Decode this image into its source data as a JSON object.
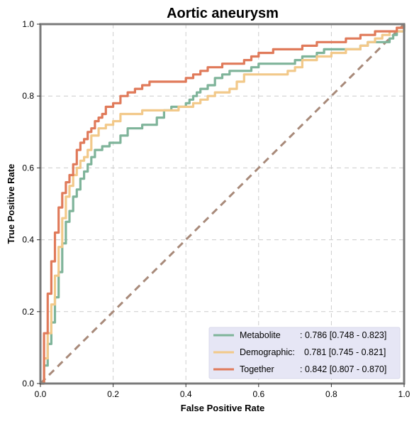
{
  "chart_data": {
    "type": "line",
    "title": "Aortic aneurysm",
    "xlabel": "False Positive Rate",
    "ylabel": "True Positive Rate",
    "xlim": [
      0,
      1
    ],
    "ylim": [
      0,
      1
    ],
    "xticks": [
      "0.0",
      "0.2",
      "0.4",
      "0.6",
      "0.8",
      "1.0"
    ],
    "yticks": [
      "0.0",
      "0.2",
      "0.4",
      "0.6",
      "0.8",
      "1.0"
    ],
    "grid": true,
    "legend_position": "bottom-right",
    "diagonal": {
      "x": [
        0,
        1
      ],
      "y": [
        0,
        1
      ],
      "color": "#a88a7a",
      "style": "dashed"
    },
    "series": [
      {
        "name": "Metabolite",
        "legend_label": "Metabolite      : 0.786 [0.748 - 0.823]",
        "color": "#7fb49a",
        "x": [
          0,
          0.01,
          0.02,
          0.03,
          0.04,
          0.05,
          0.06,
          0.07,
          0.08,
          0.09,
          0.1,
          0.11,
          0.12,
          0.13,
          0.14,
          0.15,
          0.17,
          0.19,
          0.2,
          0.22,
          0.24,
          0.26,
          0.28,
          0.3,
          0.32,
          0.34,
          0.36,
          0.38,
          0.4,
          0.41,
          0.42,
          0.43,
          0.44,
          0.46,
          0.48,
          0.5,
          0.52,
          0.54,
          0.56,
          0.58,
          0.6,
          0.62,
          0.64,
          0.66,
          0.68,
          0.7,
          0.72,
          0.74,
          0.76,
          0.78,
          0.8,
          0.84,
          0.88,
          0.9,
          0.92,
          0.94,
          0.96,
          0.97,
          0.98,
          1.0
        ],
        "y": [
          0,
          0.05,
          0.11,
          0.17,
          0.24,
          0.31,
          0.39,
          0.45,
          0.48,
          0.52,
          0.54,
          0.57,
          0.59,
          0.61,
          0.63,
          0.65,
          0.66,
          0.67,
          0.67,
          0.69,
          0.71,
          0.71,
          0.72,
          0.72,
          0.74,
          0.76,
          0.77,
          0.77,
          0.78,
          0.79,
          0.8,
          0.81,
          0.82,
          0.83,
          0.85,
          0.86,
          0.87,
          0.87,
          0.87,
          0.88,
          0.89,
          0.89,
          0.89,
          0.89,
          0.89,
          0.9,
          0.91,
          0.91,
          0.92,
          0.93,
          0.93,
          0.93,
          0.94,
          0.95,
          0.95,
          0.95,
          0.96,
          0.97,
          0.98,
          1.0
        ]
      },
      {
        "name": "Demographic",
        "legend_label": "Demographic: 0.781 [0.745 - 0.821]",
        "color": "#f2c98a",
        "x": [
          0,
          0.01,
          0.02,
          0.03,
          0.04,
          0.05,
          0.06,
          0.07,
          0.08,
          0.09,
          0.1,
          0.11,
          0.12,
          0.13,
          0.14,
          0.16,
          0.18,
          0.2,
          0.22,
          0.24,
          0.26,
          0.28,
          0.3,
          0.32,
          0.34,
          0.36,
          0.38,
          0.4,
          0.42,
          0.44,
          0.46,
          0.48,
          0.5,
          0.52,
          0.54,
          0.56,
          0.58,
          0.6,
          0.62,
          0.64,
          0.66,
          0.68,
          0.7,
          0.72,
          0.76,
          0.8,
          0.84,
          0.86,
          0.88,
          0.9,
          0.92,
          0.94,
          0.96,
          0.98,
          1.0
        ],
        "y": [
          0,
          0.07,
          0.14,
          0.22,
          0.3,
          0.38,
          0.46,
          0.52,
          0.55,
          0.58,
          0.6,
          0.62,
          0.63,
          0.65,
          0.69,
          0.71,
          0.72,
          0.73,
          0.75,
          0.75,
          0.75,
          0.76,
          0.76,
          0.76,
          0.76,
          0.76,
          0.77,
          0.77,
          0.78,
          0.79,
          0.8,
          0.81,
          0.81,
          0.82,
          0.84,
          0.86,
          0.86,
          0.86,
          0.86,
          0.86,
          0.86,
          0.87,
          0.88,
          0.9,
          0.91,
          0.92,
          0.93,
          0.93,
          0.94,
          0.95,
          0.96,
          0.97,
          0.98,
          0.98,
          1.0
        ]
      },
      {
        "name": "Together",
        "legend_label": "Together       : 0.842 [0.807 - 0.870]",
        "color": "#e07a5a",
        "x": [
          0,
          0.01,
          0.02,
          0.03,
          0.04,
          0.05,
          0.06,
          0.07,
          0.08,
          0.09,
          0.1,
          0.11,
          0.12,
          0.13,
          0.14,
          0.15,
          0.16,
          0.17,
          0.18,
          0.2,
          0.22,
          0.24,
          0.26,
          0.28,
          0.3,
          0.32,
          0.34,
          0.36,
          0.38,
          0.4,
          0.42,
          0.44,
          0.46,
          0.48,
          0.5,
          0.52,
          0.54,
          0.56,
          0.58,
          0.6,
          0.62,
          0.64,
          0.68,
          0.72,
          0.76,
          0.8,
          0.84,
          0.86,
          0.88,
          0.9,
          0.92,
          0.96,
          0.98,
          1.0
        ],
        "y": [
          0,
          0.14,
          0.25,
          0.34,
          0.42,
          0.49,
          0.53,
          0.56,
          0.58,
          0.61,
          0.65,
          0.67,
          0.68,
          0.7,
          0.71,
          0.73,
          0.74,
          0.75,
          0.77,
          0.78,
          0.8,
          0.81,
          0.82,
          0.83,
          0.84,
          0.84,
          0.84,
          0.84,
          0.84,
          0.85,
          0.86,
          0.87,
          0.88,
          0.88,
          0.89,
          0.89,
          0.89,
          0.9,
          0.91,
          0.92,
          0.92,
          0.93,
          0.93,
          0.94,
          0.95,
          0.95,
          0.96,
          0.96,
          0.97,
          0.97,
          0.98,
          0.98,
          0.99,
          1.0
        ]
      }
    ]
  },
  "legend": {
    "names": [
      "Metabolite",
      "Demographic:",
      "Together"
    ],
    "scores": [
      ": 0.786 [0.748 - 0.823]",
      "0.781 [0.745 - 0.821]",
      ": 0.842 [0.807 - 0.870]"
    ]
  },
  "colors": {
    "frame": "#7a7a7a",
    "grid": "#cccccc",
    "legend_bg": "#e6e6f5"
  }
}
